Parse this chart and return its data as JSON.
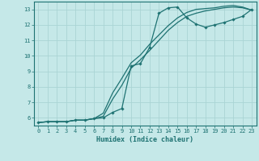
{
  "xlabel": "Humidex (Indice chaleur)",
  "bg_color": "#c5e8e8",
  "grid_color": "#aad4d4",
  "line_color": "#1e7272",
  "xlim": [
    -0.5,
    23.5
  ],
  "ylim": [
    5.5,
    13.5
  ],
  "xticks": [
    0,
    1,
    2,
    3,
    4,
    5,
    6,
    7,
    8,
    9,
    10,
    11,
    12,
    13,
    14,
    15,
    16,
    17,
    18,
    19,
    20,
    21,
    22,
    23
  ],
  "yticks": [
    6,
    7,
    8,
    9,
    10,
    11,
    12,
    13
  ],
  "line1_x": [
    0,
    1,
    2,
    3,
    4,
    5,
    6,
    7,
    8,
    9,
    10,
    11,
    12,
    13,
    14,
    15,
    16,
    17,
    18,
    19,
    20,
    21,
    22,
    23
  ],
  "line1_y": [
    5.7,
    5.75,
    5.75,
    5.75,
    5.85,
    5.85,
    5.95,
    6.0,
    6.35,
    6.6,
    9.35,
    9.5,
    10.55,
    12.75,
    13.1,
    13.15,
    12.45,
    12.05,
    11.85,
    12.0,
    12.15,
    12.35,
    12.55,
    13.0
  ],
  "line2_x": [
    0,
    1,
    2,
    3,
    4,
    5,
    6,
    7,
    8,
    9,
    10,
    11,
    12,
    13,
    14,
    15,
    16,
    17,
    18,
    19,
    20,
    21,
    22,
    23
  ],
  "line2_y": [
    5.7,
    5.75,
    5.75,
    5.75,
    5.85,
    5.85,
    5.95,
    6.3,
    7.6,
    8.55,
    9.55,
    10.05,
    10.75,
    11.35,
    11.95,
    12.45,
    12.8,
    13.0,
    13.05,
    13.1,
    13.2,
    13.25,
    13.15,
    12.95
  ],
  "line3_x": [
    0,
    1,
    2,
    3,
    4,
    5,
    6,
    7,
    8,
    9,
    10,
    11,
    12,
    13,
    14,
    15,
    16,
    17,
    18,
    19,
    20,
    21,
    22,
    23
  ],
  "line3_y": [
    5.7,
    5.75,
    5.75,
    5.75,
    5.85,
    5.85,
    5.95,
    6.1,
    7.2,
    8.1,
    9.2,
    9.75,
    10.35,
    11.0,
    11.65,
    12.15,
    12.55,
    12.75,
    12.9,
    13.0,
    13.1,
    13.15,
    13.1,
    12.95
  ]
}
